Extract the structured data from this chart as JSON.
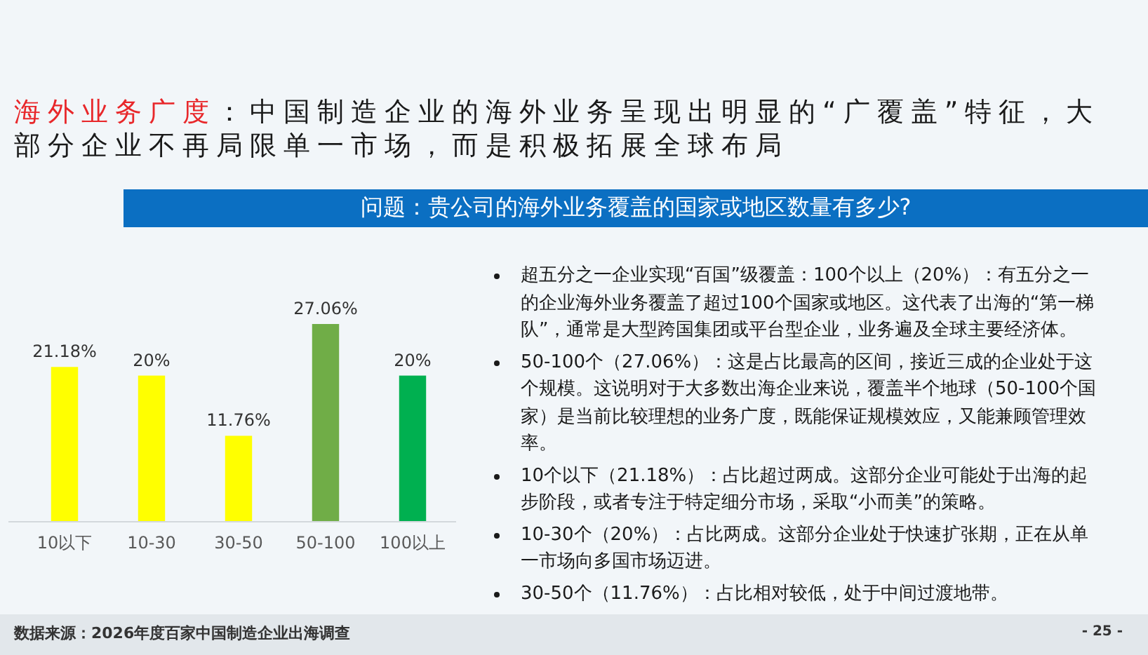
{
  "chart_data": {
    "type": "bar",
    "title": "海外业务广度：中国制造企业的海外业务呈现出明显的“广覆盖”特征，大部分企业不再局限单一市场，而是积极拓展全球布局",
    "subtitle": "问题：贵公司的海外业务覆盖的国家或地区数量有多少?",
    "categories": [
      "10以下",
      "10-30",
      "30-50",
      "50-100",
      "100以上"
    ],
    "values": [
      21.18,
      20,
      11.76,
      27.06,
      20
    ],
    "colors": [
      "#ffff00",
      "#ffff00",
      "#ffff00",
      "#70ad47",
      "#00b050"
    ],
    "value_labels": [
      "21.18%",
      "20%",
      "11.76%",
      "27.06%",
      "20%"
    ],
    "annotations": [
      "超五分之一企业实现“百国”级覆盖：100个以上（20%）：有五分之一的企业海外业务覆盖了超过100个国家或地区。这代表了出海的“第一梯队”，通常是大型跨国集团或平台型企业，业务遍及全球主要经济体。",
      "50-100个（27.06%）：这是占比最高的区间，接近三成的企业处于这个规模。这说明对于大多数出海企业来说，覆盖半个地球（50-100个国家）是当前比较理想的业务广度，既能保证规模效应，又能兼顾管理效率。",
      "10个以下（21.18%）：占比超过两成。这部分企业可能处于出海的起步阶段，或者专注于特定细分市场，采取“小而美”的策略。",
      "10-30个（20%）：占比两成。这部分企业处于快速扩张期，正在从单一市场向多国市场迈进。",
      "30-50个（11.76%）：占比相对较低，处于中间过渡地带。",
      "数据来源：2026年度百家中国制造企业出海调查",
      "- 25 -"
    ]
  }
}
